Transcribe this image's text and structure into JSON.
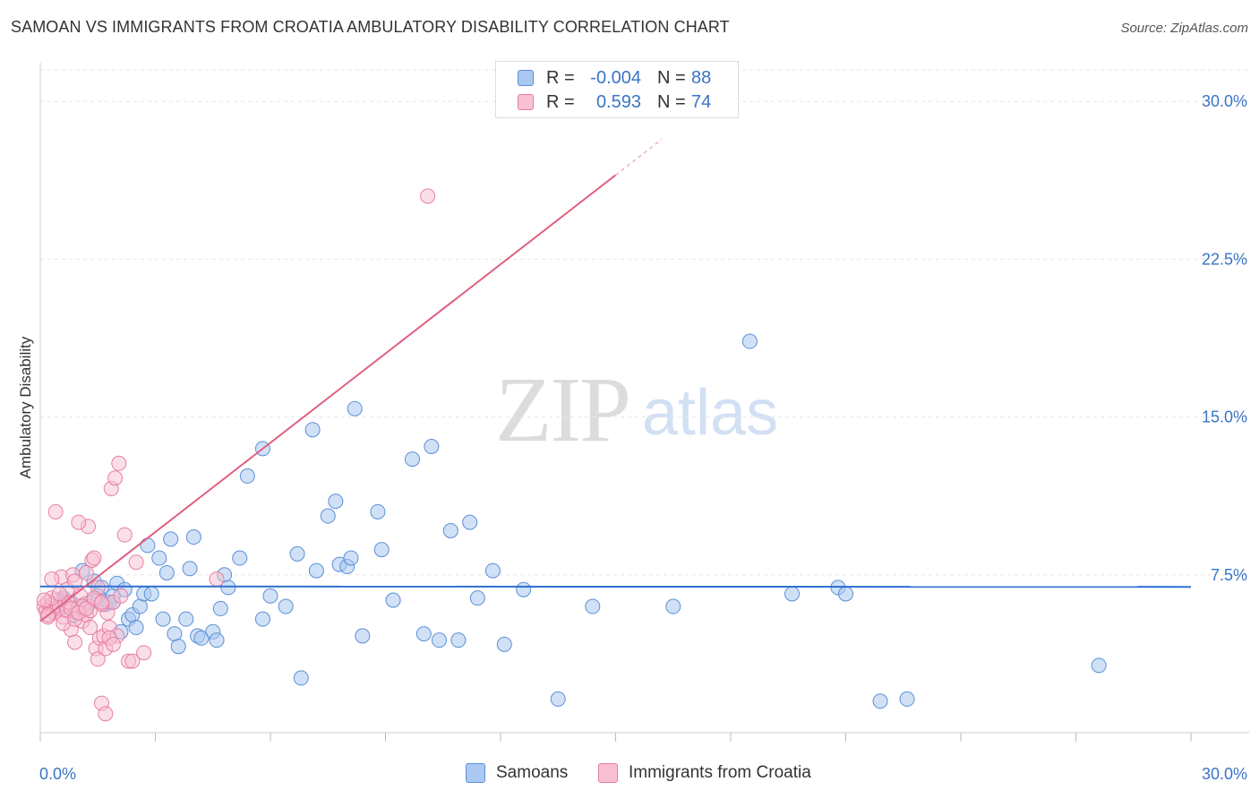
{
  "header": {
    "title": "SAMOAN VS IMMIGRANTS FROM CROATIA AMBULATORY DISABILITY CORRELATION CHART",
    "source": "Source: ZipAtlas.com"
  },
  "watermark": {
    "zip": "ZIP",
    "atlas": "atlas"
  },
  "legend": {
    "rows": [
      {
        "r_label": "R =",
        "r_value": "-0.004",
        "n_label": "N =",
        "n_value": "88",
        "color": "#aac8f0",
        "border": "#5b8fd6"
      },
      {
        "r_label": "R =",
        "r_value": "0.593",
        "n_label": "N =",
        "n_value": "74",
        "color": "#f8c0d2",
        "border": "#e67fa2"
      }
    ]
  },
  "bottom_legend": {
    "samoans": "Samoans",
    "croatia": "Immigrants from Croatia"
  },
  "chart_data": {
    "type": "scatter",
    "title": "SAMOAN VS IMMIGRANTS FROM CROATIA AMBULATORY DISABILITY CORRELATION CHART",
    "xlabel": "",
    "ylabel": "Ambulatory Disability",
    "xlim": [
      0,
      30
    ],
    "ylim": [
      0,
      31.5
    ],
    "x_tick_labels": [
      "0.0%",
      "30.0%"
    ],
    "y_ticks": [
      7.5,
      15.0,
      22.5,
      30.0
    ],
    "y_tick_labels": [
      "7.5%",
      "15.0%",
      "22.5%",
      "30.0%"
    ],
    "colors": {
      "samoans": "#5b8fd6",
      "croatia": "#e67fa2",
      "samoans_line": "#2f6fcf",
      "croatia_line": "#e0607f"
    },
    "series": [
      {
        "name": "Samoans",
        "trend": {
          "x0": 0.0,
          "y0": 6.95,
          "x1": 30.0,
          "y1": 6.93
        },
        "points": [
          [
            0.4,
            6.1
          ],
          [
            0.5,
            5.9
          ],
          [
            0.6,
            6.3
          ],
          [
            0.7,
            6.0
          ],
          [
            0.8,
            6.2
          ],
          [
            0.9,
            5.6
          ],
          [
            1.0,
            6.0
          ],
          [
            1.1,
            7.7
          ],
          [
            1.2,
            6.0
          ],
          [
            1.3,
            6.2
          ],
          [
            1.4,
            7.2
          ],
          [
            1.5,
            6.3
          ],
          [
            1.6,
            6.9
          ],
          [
            1.7,
            6.1
          ],
          [
            1.8,
            6.2
          ],
          [
            1.9,
            6.5
          ],
          [
            2.0,
            7.1
          ],
          [
            2.1,
            4.8
          ],
          [
            2.2,
            6.8
          ],
          [
            2.3,
            5.4
          ],
          [
            2.4,
            5.6
          ],
          [
            2.5,
            5.0
          ],
          [
            2.6,
            6.0
          ],
          [
            2.7,
            6.6
          ],
          [
            2.8,
            8.9
          ],
          [
            2.9,
            6.6
          ],
          [
            3.1,
            8.3
          ],
          [
            3.2,
            5.4
          ],
          [
            3.3,
            7.6
          ],
          [
            3.4,
            9.2
          ],
          [
            3.5,
            4.7
          ],
          [
            3.6,
            4.1
          ],
          [
            3.8,
            5.4
          ],
          [
            3.9,
            7.8
          ],
          [
            4.0,
            9.3
          ],
          [
            4.1,
            4.6
          ],
          [
            4.2,
            4.5
          ],
          [
            4.5,
            4.8
          ],
          [
            4.6,
            4.4
          ],
          [
            4.7,
            5.9
          ],
          [
            4.8,
            7.5
          ],
          [
            4.9,
            6.9
          ],
          [
            5.2,
            8.3
          ],
          [
            5.4,
            12.2
          ],
          [
            5.8,
            5.4
          ],
          [
            5.8,
            13.5
          ],
          [
            6.0,
            6.5
          ],
          [
            6.4,
            6.0
          ],
          [
            6.7,
            8.5
          ],
          [
            6.8,
            2.6
          ],
          [
            7.1,
            14.4
          ],
          [
            7.2,
            7.7
          ],
          [
            7.5,
            10.3
          ],
          [
            7.7,
            11.0
          ],
          [
            7.8,
            8.0
          ],
          [
            8.0,
            7.9
          ],
          [
            8.1,
            8.3
          ],
          [
            8.2,
            15.4
          ],
          [
            8.4,
            4.6
          ],
          [
            8.8,
            10.5
          ],
          [
            8.9,
            8.7
          ],
          [
            9.2,
            6.3
          ],
          [
            9.7,
            13.0
          ],
          [
            10.0,
            4.7
          ],
          [
            10.2,
            13.6
          ],
          [
            10.4,
            4.4
          ],
          [
            10.7,
            9.6
          ],
          [
            10.9,
            4.4
          ],
          [
            11.2,
            10.0
          ],
          [
            11.4,
            6.4
          ],
          [
            11.8,
            7.7
          ],
          [
            12.1,
            4.2
          ],
          [
            12.6,
            6.8
          ],
          [
            13.5,
            1.6
          ],
          [
            14.4,
            6.0
          ],
          [
            16.5,
            6.0
          ],
          [
            18.5,
            18.6
          ],
          [
            19.6,
            6.6
          ],
          [
            20.8,
            6.9
          ],
          [
            21.0,
            6.6
          ],
          [
            21.9,
            1.5
          ],
          [
            22.6,
            1.6
          ],
          [
            27.6,
            3.2
          ],
          [
            0.3,
            5.8
          ],
          [
            0.6,
            6.4
          ],
          [
            1.5,
            6.5
          ],
          [
            1.9,
            6.2
          ],
          [
            0.8,
            5.9
          ]
        ]
      },
      {
        "name": "Immigrants from Croatia",
        "trend": {
          "x0": 0.0,
          "y0": 5.3,
          "x1": 15.0,
          "y1": 26.5,
          "dash_to_x": 16.2
        },
        "points": [
          [
            0.1,
            6.0
          ],
          [
            0.15,
            5.8
          ],
          [
            0.2,
            6.2
          ],
          [
            0.25,
            5.9
          ],
          [
            0.3,
            6.1
          ],
          [
            0.35,
            5.7
          ],
          [
            0.4,
            6.3
          ],
          [
            0.45,
            5.9
          ],
          [
            0.5,
            6.0
          ],
          [
            0.55,
            7.4
          ],
          [
            0.6,
            5.5
          ],
          [
            0.65,
            6.1
          ],
          [
            0.7,
            5.8
          ],
          [
            0.75,
            6.2
          ],
          [
            0.8,
            4.9
          ],
          [
            0.85,
            7.5
          ],
          [
            0.9,
            4.3
          ],
          [
            0.95,
            5.7
          ],
          [
            1.0,
            6.0
          ],
          [
            1.05,
            6.5
          ],
          [
            1.1,
            5.3
          ],
          [
            1.15,
            6.1
          ],
          [
            1.2,
            5.6
          ],
          [
            1.25,
            9.8
          ],
          [
            1.3,
            5.0
          ],
          [
            1.35,
            8.2
          ],
          [
            1.4,
            6.3
          ],
          [
            1.45,
            4.0
          ],
          [
            1.5,
            3.5
          ],
          [
            1.55,
            4.5
          ],
          [
            1.6,
            1.4
          ],
          [
            1.65,
            4.6
          ],
          [
            1.7,
            0.9
          ],
          [
            1.75,
            5.7
          ],
          [
            1.8,
            5.0
          ],
          [
            1.85,
            11.6
          ],
          [
            1.9,
            6.2
          ],
          [
            1.95,
            12.1
          ],
          [
            2.0,
            4.6
          ],
          [
            2.05,
            12.8
          ],
          [
            2.1,
            6.5
          ],
          [
            2.2,
            9.4
          ],
          [
            2.3,
            3.4
          ],
          [
            2.4,
            3.4
          ],
          [
            2.5,
            8.1
          ],
          [
            2.7,
            3.8
          ],
          [
            0.4,
            10.5
          ],
          [
            0.6,
            5.2
          ],
          [
            0.7,
            6.8
          ],
          [
            0.9,
            7.2
          ],
          [
            1.0,
            10.0
          ],
          [
            1.1,
            6.0
          ],
          [
            1.2,
            7.6
          ],
          [
            1.3,
            5.8
          ],
          [
            1.4,
            8.3
          ],
          [
            1.5,
            6.9
          ],
          [
            1.6,
            6.1
          ],
          [
            1.7,
            4.0
          ],
          [
            1.8,
            4.5
          ],
          [
            1.9,
            4.2
          ],
          [
            0.2,
            5.5
          ],
          [
            0.3,
            6.4
          ],
          [
            0.5,
            6.6
          ],
          [
            0.8,
            5.9
          ],
          [
            0.9,
            5.4
          ],
          [
            1.0,
            5.7
          ],
          [
            1.2,
            5.9
          ],
          [
            1.4,
            6.4
          ],
          [
            1.6,
            6.2
          ],
          [
            4.6,
            7.3
          ],
          [
            10.1,
            25.5
          ],
          [
            0.1,
            6.3
          ],
          [
            0.2,
            5.6
          ],
          [
            0.3,
            7.3
          ]
        ]
      }
    ]
  }
}
